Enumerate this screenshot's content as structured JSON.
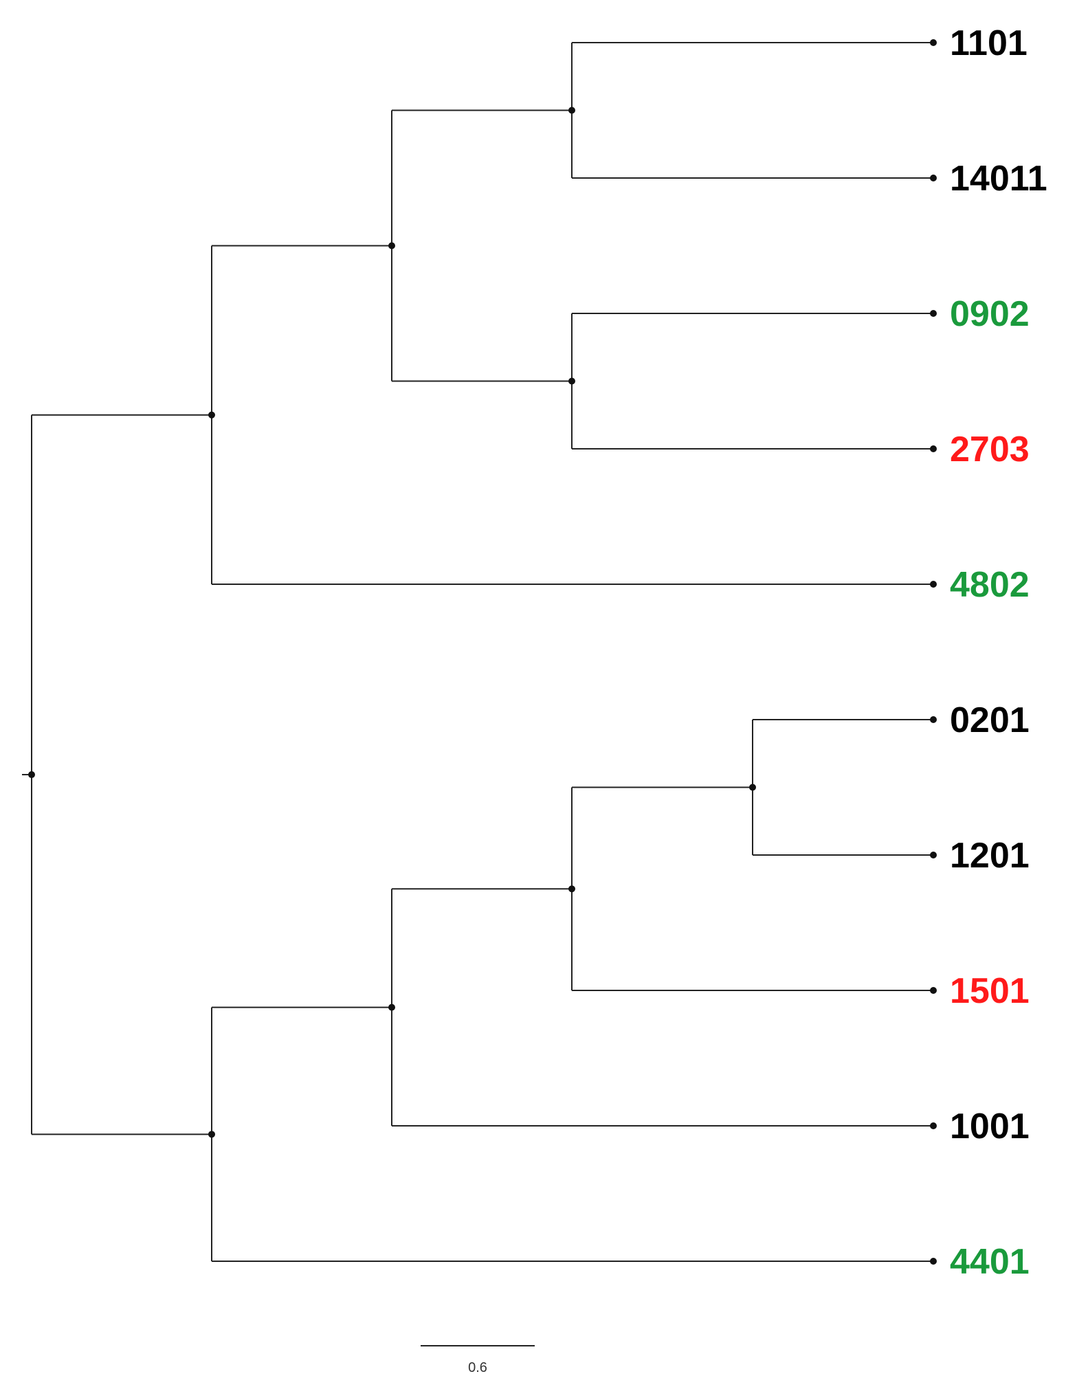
{
  "tree": {
    "type": "phylogenetic-tree",
    "layout": "rectangular",
    "root": {
      "children": [
        {
          "children": [
            {
              "children": [
                {
                  "children": [
                    {
                      "label": "1101",
                      "color": "#000000"
                    },
                    {
                      "label": "14011",
                      "color": "#000000"
                    }
                  ]
                },
                {
                  "children": [
                    {
                      "label": "0902",
                      "color": "#1a9a3c"
                    },
                    {
                      "label": "2703",
                      "color": "#ff1a1a"
                    }
                  ]
                }
              ]
            },
            {
              "label": "4802",
              "color": "#1a9a3c"
            }
          ]
        },
        {
          "children": [
            {
              "children": [
                {
                  "children": [
                    {
                      "children": [
                        {
                          "label": "0201",
                          "color": "#000000"
                        },
                        {
                          "label": "1201",
                          "color": "#000000"
                        }
                      ]
                    },
                    {
                      "label": "1501",
                      "color": "#ff1a1a"
                    }
                  ]
                },
                {
                  "label": "1001",
                  "color": "#000000"
                }
              ]
            },
            {
              "label": "4401",
              "color": "#1a9a3c"
            }
          ]
        }
      ]
    }
  },
  "scale_bar": {
    "label": "0.6"
  },
  "colors": {
    "branch": "#222222",
    "node": "#111111"
  }
}
